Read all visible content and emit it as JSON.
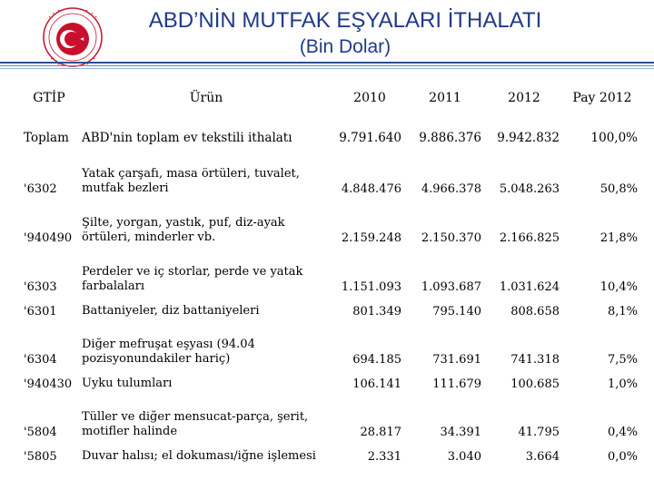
{
  "header": {
    "title_line1": "ABD’NİN MUTFAK EŞYALARI İTHALATI",
    "title_line2": "(Bin Dolar)",
    "logo_text": "T.C. EKONOMİ BAKANLIĞI",
    "logo_colors": {
      "red": "#c8102e",
      "white": "#ffffff"
    }
  },
  "table": {
    "columns": [
      "GTİP",
      "Ürün",
      "2010",
      "2011",
      "2012",
      "Pay 2012"
    ],
    "total": {
      "code": "Toplam",
      "product": "ABD'nin toplam ev tekstili ithalatı",
      "v2010": "9.791.640",
      "v2011": "9.886.376",
      "v2012": "9.942.832",
      "pay": "100,0%"
    },
    "rows": [
      {
        "code": "'6302",
        "product": "Yatak çarşafı, masa örtüleri, tuvalet, mutfak bezleri",
        "v2010": "4.848.476",
        "v2011": "4.966.378",
        "v2012": "5.048.263",
        "pay": "50,8%"
      },
      {
        "code": "'940490",
        "product": "Şilte, yorgan, yastık, puf, diz-ayak örtüleri, minderler vb.",
        "v2010": "2.159.248",
        "v2011": "2.150.370",
        "v2012": "2.166.825",
        "pay": "21,8%"
      },
      {
        "code": "'6303",
        "product": "Perdeler ve iç storlar, perde ve yatak farbalaları",
        "v2010": "1.151.093",
        "v2011": "1.093.687",
        "v2012": "1.031.624",
        "pay": "10,4%"
      },
      {
        "code": "'6301",
        "product": "Battaniyeler, diz battaniyeleri",
        "v2010": "801.349",
        "v2011": "795.140",
        "v2012": "808.658",
        "pay": "8,1%"
      },
      {
        "code": "'6304",
        "product": "Diğer mefruşat eşyası (94.04 pozisyonundakiler hariç)",
        "v2010": "694.185",
        "v2011": "731.691",
        "v2012": "741.318",
        "pay": "7,5%"
      },
      {
        "code": "'940430",
        "product": "Uyku tulumları",
        "v2010": "106.141",
        "v2011": "111.679",
        "v2012": "100.685",
        "pay": "1,0%"
      },
      {
        "code": "'5804",
        "product": "Tüller ve diğer mensucat-parça, şerit, motifler halinde",
        "v2010": "28.817",
        "v2011": "34.391",
        "v2012": "41.795",
        "pay": "0,4%"
      },
      {
        "code": "'5805",
        "product": "Duvar halısı; el dokuması/iğne işlemesi",
        "v2010": "2.331",
        "v2011": "3.040",
        "v2012": "3.664",
        "pay": "0,0%"
      }
    ]
  }
}
